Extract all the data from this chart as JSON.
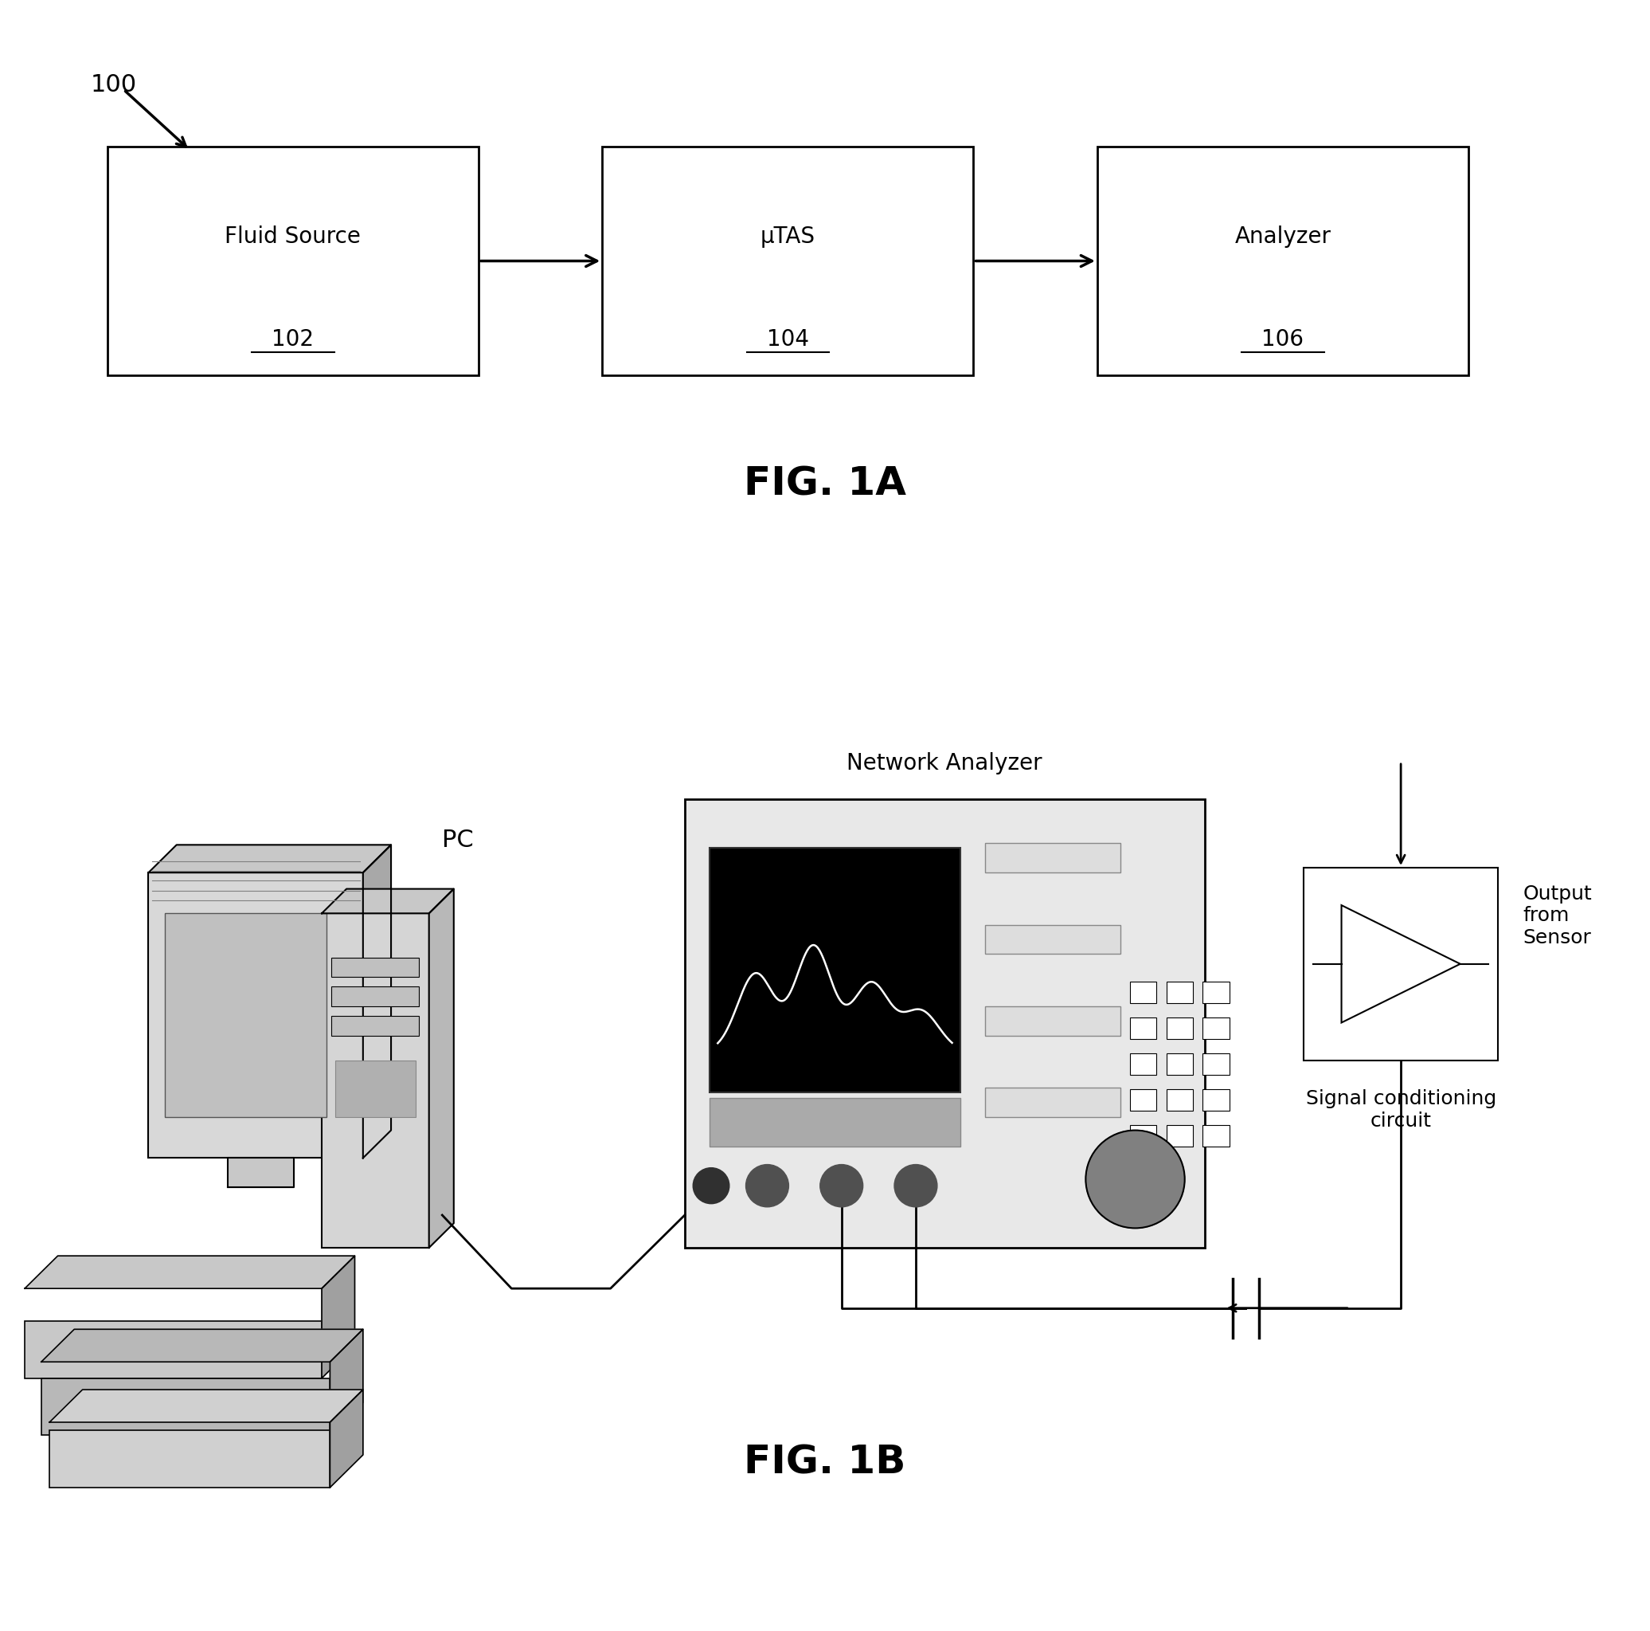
{
  "fig_width": 20.72,
  "fig_height": 20.47,
  "bg_color": "#ffffff",
  "fig1a_label": "FIG. 1A",
  "fig1b_label": "FIG. 1B",
  "ref_100": "100",
  "pc_label": "PC",
  "na_label": "Network Analyzer",
  "out_sensor_label": "Output\nfrom\nSensor",
  "sig_cond_label": "Signal conditioning\ncircuit",
  "box1_label": "Fluid Source",
  "box1_ref": "102",
  "box2_label": "μTAS",
  "box2_ref": "104",
  "box3_label": "Analyzer",
  "box3_ref": "106"
}
